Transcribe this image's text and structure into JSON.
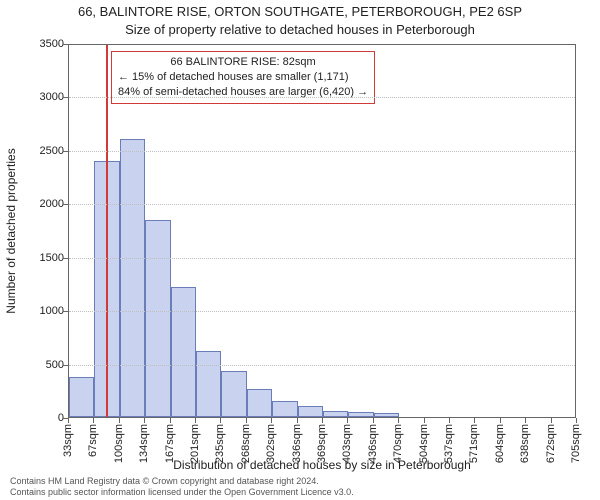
{
  "titles": {
    "line1": "66, BALINTORE RISE, ORTON SOUTHGATE, PETERBOROUGH, PE2 6SP",
    "line2": "Size of property relative to detached houses in Peterborough"
  },
  "chart": {
    "type": "histogram",
    "background_color": "#ffffff",
    "border_color": "#666666",
    "grid_color": "#bfbfbf",
    "bar_fill": "#c9d3f0",
    "bar_border": "#6a7db8",
    "marker_color": "#d23a3a",
    "ylabel": "Number of detached properties",
    "xlabel": "Distribution of detached houses by size in Peterborough",
    "ylim": [
      0,
      3500
    ],
    "yticks": [
      0,
      500,
      1000,
      1500,
      2000,
      2500,
      3000,
      3500
    ],
    "xticks": [
      "33sqm",
      "67sqm",
      "100sqm",
      "134sqm",
      "167sqm",
      "201sqm",
      "235sqm",
      "268sqm",
      "302sqm",
      "336sqm",
      "369sqm",
      "403sqm",
      "436sqm",
      "470sqm",
      "504sqm",
      "537sqm",
      "571sqm",
      "604sqm",
      "638sqm",
      "672sqm",
      "705sqm"
    ],
    "bars": [
      370,
      2400,
      2600,
      1840,
      1220,
      620,
      430,
      260,
      150,
      100,
      60,
      50,
      40,
      0,
      0,
      0,
      0,
      0,
      0,
      0
    ],
    "marker_x_value": 82,
    "x_range": [
      33,
      705
    ],
    "info_box": {
      "line1": "66 BALINTORE RISE: 82sqm",
      "line2": "← 15% of detached houses are smaller (1,171)",
      "line3": "84% of semi-detached houses are larger (6,420) →"
    },
    "title_fontsize": 13,
    "label_fontsize": 12,
    "tick_fontsize": 11
  },
  "footer": {
    "line1": "Contains HM Land Registry data © Crown copyright and database right 2024.",
    "line2": "Contains public sector information licensed under the Open Government Licence v3.0."
  }
}
